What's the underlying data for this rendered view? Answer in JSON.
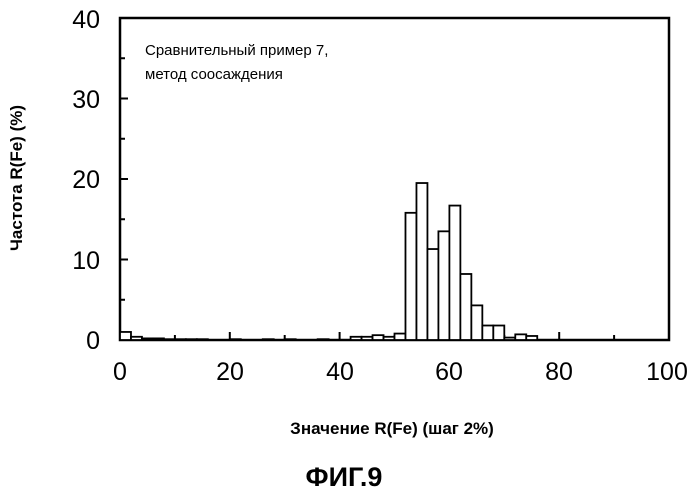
{
  "chart_data": {
    "type": "bar",
    "title": "",
    "xlabel": "Значение R(Fe) (шаг 2%)",
    "ylabel": "Частота R(Fe) (%)",
    "xlim": [
      0,
      100
    ],
    "ylim": [
      0,
      40
    ],
    "bin_width": 2,
    "xticks": [
      "0",
      "20",
      "40",
      "60",
      "80",
      "100"
    ],
    "yticks": [
      "0",
      "10",
      "20",
      "30",
      "40"
    ],
    "annotation": [
      "Сравнительный пример 7,",
      "метод соосаждения"
    ],
    "caption": "ФИГ.9",
    "bins": [
      {
        "x": 0,
        "value": 1.0
      },
      {
        "x": 2,
        "value": 0.4
      },
      {
        "x": 4,
        "value": 0.2
      },
      {
        "x": 6,
        "value": 0.2
      },
      {
        "x": 8,
        "value": 0.1
      },
      {
        "x": 10,
        "value": 0.1
      },
      {
        "x": 12,
        "value": 0.1
      },
      {
        "x": 14,
        "value": 0.1
      },
      {
        "x": 20,
        "value": 0.1
      },
      {
        "x": 26,
        "value": 0.1
      },
      {
        "x": 30,
        "value": 0.1
      },
      {
        "x": 36,
        "value": 0.1
      },
      {
        "x": 42,
        "value": 0.4
      },
      {
        "x": 44,
        "value": 0.4
      },
      {
        "x": 46,
        "value": 0.6
      },
      {
        "x": 48,
        "value": 0.4
      },
      {
        "x": 50,
        "value": 0.8
      },
      {
        "x": 52,
        "value": 15.8
      },
      {
        "x": 54,
        "value": 19.5
      },
      {
        "x": 56,
        "value": 11.3
      },
      {
        "x": 58,
        "value": 13.5
      },
      {
        "x": 60,
        "value": 16.7
      },
      {
        "x": 62,
        "value": 8.2
      },
      {
        "x": 64,
        "value": 4.3
      },
      {
        "x": 66,
        "value": 1.8
      },
      {
        "x": 68,
        "value": 1.8
      },
      {
        "x": 70,
        "value": 0.3
      },
      {
        "x": 72,
        "value": 0.7
      },
      {
        "x": 74,
        "value": 0.5
      }
    ]
  }
}
